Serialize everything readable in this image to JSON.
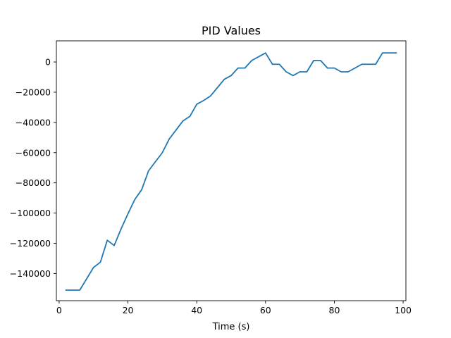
{
  "chart_data": {
    "type": "line",
    "title": "PID Values",
    "xlabel": "Time (s)",
    "ylabel": "",
    "xlim": [
      -0.8,
      100.8
    ],
    "ylim": [
      -158000,
      14000
    ],
    "xticks": [
      0,
      20,
      40,
      60,
      80,
      100
    ],
    "yticks": [
      -140000,
      -120000,
      -100000,
      -80000,
      -60000,
      -40000,
      -20000,
      0
    ],
    "grid": false,
    "series": [
      {
        "color": "#1f77b4",
        "x": [
          2,
          4,
          6,
          8,
          10,
          12,
          14,
          16,
          18,
          20,
          22,
          24,
          26,
          28,
          30,
          32,
          34,
          36,
          38,
          40,
          42,
          44,
          46,
          48,
          50,
          52,
          54,
          56,
          58,
          60,
          62,
          64,
          66,
          68,
          70,
          72,
          74,
          76,
          78,
          80,
          82,
          84,
          86,
          88,
          90,
          92,
          94,
          96,
          98
        ],
        "values": [
          -151000,
          -151000,
          -151000,
          -143500,
          -136000,
          -132500,
          -118000,
          -121500,
          -110500,
          -100500,
          -91000,
          -84500,
          -72000,
          -66000,
          -60000,
          -51000,
          -45000,
          -39000,
          -36000,
          -28000,
          -25500,
          -22500,
          -17000,
          -11500,
          -9000,
          -4000,
          -4000,
          1000,
          3500,
          6000,
          -1500,
          -1500,
          -6500,
          -9000,
          -6500,
          -6500,
          1000,
          1000,
          -4000,
          -4000,
          -6500,
          -6500,
          -4000,
          -1500,
          -1500,
          -1500,
          6000,
          6000,
          6000
        ]
      }
    ]
  }
}
